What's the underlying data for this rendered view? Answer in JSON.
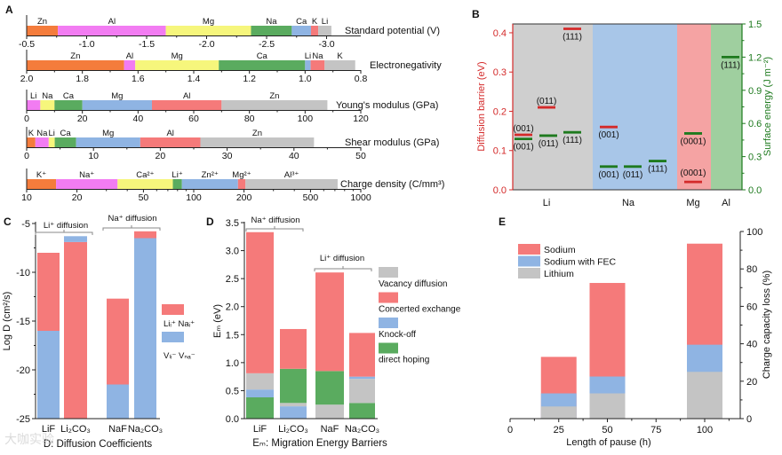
{
  "panel_labels": [
    "A",
    "B",
    "C",
    "D",
    "E"
  ],
  "watermark": "大咖实验",
  "colors": {
    "orange": "#f47c3c",
    "magenta": "#f27cf2",
    "yellow": "#f6f67c",
    "green": "#5aab5f",
    "blue": "#8fb4e3",
    "red": "#f57a7a",
    "gray": "#c4c4c4",
    "barrier": "#d42a2a",
    "surface": "#1e7a1e"
  },
  "chart_data": [
    {
      "panel": "A",
      "type": "bar",
      "subtype": "cumulative horizontal segment bars",
      "rows": [
        {
          "title": "Standard potential (V)",
          "scale": "linear",
          "domain": [
            -0.5,
            -3.285
          ],
          "ticks": [
            -0.5,
            -1.0,
            -1.5,
            -2.0,
            -2.5,
            -3.0
          ],
          "tick_labels": [
            "-0.5",
            "-1.0",
            "-1.5",
            "-2.0",
            "-2.5",
            "-3.0"
          ],
          "segments": [
            {
              "label": "Zn",
              "value": -0.76,
              "color": "orange"
            },
            {
              "label": "Al",
              "value": -1.66,
              "color": "magenta"
            },
            {
              "label": "Mg",
              "value": -2.37,
              "color": "yellow"
            },
            {
              "label": "Na",
              "value": -2.71,
              "color": "green"
            },
            {
              "label": "Ca",
              "value": -2.87,
              "color": "blue"
            },
            {
              "label": "K",
              "value": -2.93,
              "color": "red"
            },
            {
              "label": "Li",
              "value": -3.04,
              "color": "gray"
            }
          ]
        },
        {
          "title": "Electronegativity",
          "scale": "linear",
          "domain": [
            2.0,
            0.8
          ],
          "ticks": [
            2.0,
            1.8,
            1.6,
            1.4,
            1.2,
            1.0,
            0.8
          ],
          "tick_labels": [
            "2.0",
            "1.8",
            "1.6",
            "1.4",
            "1.2",
            "1.0",
            "0.8"
          ],
          "segments": [
            {
              "label": "Zn",
              "value": 1.65,
              "color": "orange"
            },
            {
              "label": "Al",
              "value": 1.61,
              "color": "magenta"
            },
            {
              "label": "Mg",
              "value": 1.31,
              "color": "yellow"
            },
            {
              "label": "Ca",
              "value": 1.0,
              "color": "green"
            },
            {
              "label": "Li",
              "value": 0.98,
              "color": "blue"
            },
            {
              "label": "Na",
              "value": 0.93,
              "color": "red"
            },
            {
              "label": "K",
              "value": 0.82,
              "color": "gray"
            }
          ]
        },
        {
          "title": "Young's modulus (GPa)",
          "scale": "linear",
          "domain": [
            0,
            120
          ],
          "ticks": [
            0,
            20,
            40,
            60,
            80,
            100,
            120
          ],
          "tick_labels": [
            "0",
            "20",
            "40",
            "60",
            "80",
            "100",
            "120"
          ],
          "segments": [
            {
              "label": "Li",
              "value": 4.9,
              "color": "magenta"
            },
            {
              "label": "Na",
              "value": 10,
              "color": "yellow"
            },
            {
              "label": "Ca",
              "value": 20,
              "color": "green"
            },
            {
              "label": "Mg",
              "value": 45,
              "color": "blue"
            },
            {
              "label": "Al",
              "value": 70,
              "color": "red"
            },
            {
              "label": "Zn",
              "value": 108,
              "color": "gray"
            }
          ]
        },
        {
          "title": "Shear modulus (GPa)",
          "scale": "linear",
          "domain": [
            0,
            50
          ],
          "ticks": [
            0,
            10,
            20,
            30,
            40,
            50
          ],
          "tick_labels": [
            "0",
            "10",
            "20",
            "30",
            "40",
            "50"
          ],
          "segments": [
            {
              "label": "K",
              "value": 1.3,
              "color": "orange"
            },
            {
              "label": "Na",
              "value": 3.3,
              "color": "magenta"
            },
            {
              "label": "Li",
              "value": 4.2,
              "color": "yellow"
            },
            {
              "label": "Ca",
              "value": 7.4,
              "color": "green"
            },
            {
              "label": "Mg",
              "value": 17,
              "color": "blue"
            },
            {
              "label": "Al",
              "value": 26,
              "color": "red"
            },
            {
              "label": "Zn",
              "value": 43,
              "color": "gray"
            }
          ]
        },
        {
          "title": "Charge density (C/mm³)",
          "scale": "log",
          "domain": [
            10,
            1000
          ],
          "ticks": [
            10,
            20,
            50,
            100,
            200,
            500,
            1000
          ],
          "tick_labels": [
            "10",
            "20",
            "50",
            "100",
            "200",
            "500",
            "1000"
          ],
          "segments": [
            {
              "label": "K⁺",
              "value": 15,
              "color": "orange"
            },
            {
              "label": "Na⁺",
              "value": 35,
              "color": "magenta"
            },
            {
              "label": "Ca²⁺",
              "value": 75,
              "color": "yellow"
            },
            {
              "label": "Li⁺",
              "value": 85,
              "color": "green"
            },
            {
              "label": "Zn²⁺",
              "value": 184,
              "color": "blue"
            },
            {
              "label": "Mg²⁺",
              "value": 204,
              "color": "red"
            },
            {
              "label": "Al³⁺",
              "value": 727,
              "color": "gray"
            }
          ]
        }
      ]
    },
    {
      "panel": "B",
      "type": "scatter",
      "ylabel": "Diffusion barrier (eV)",
      "ylim": [
        0,
        0.4225
      ],
      "yticks": [
        "0.0",
        "0.1",
        "0.2",
        "0.3",
        "0.4"
      ],
      "y2label": "Surface energy (J m⁻²)",
      "y2lim": [
        0,
        1.5
      ],
      "y2ticks": [
        "0.0",
        "0.3",
        "0.6",
        "0.9",
        "1.2",
        "1.5"
      ],
      "categories": [
        {
          "label": "Li",
          "color": "#cfcfcf"
        },
        {
          "label": "Na",
          "color": "#a8c6e8"
        },
        {
          "label": "Mg",
          "color": "#f5a3a3"
        },
        {
          "label": "Al",
          "color": "#9fcf9f"
        }
      ],
      "points": [
        {
          "metal": "Li",
          "facet": "(001)",
          "metric": "barrier",
          "value": 0.14
        },
        {
          "metal": "Li",
          "facet": "(001)",
          "metric": "surface",
          "value": 0.46
        },
        {
          "metal": "Li",
          "facet": "(011)",
          "metric": "barrier",
          "value": 0.21
        },
        {
          "metal": "Li",
          "facet": "(011)",
          "metric": "surface",
          "value": 0.49
        },
        {
          "metal": "Li",
          "facet": "(111)",
          "metric": "barrier",
          "value": 0.41
        },
        {
          "metal": "Li",
          "facet": "(111)",
          "metric": "surface",
          "value": 0.52
        },
        {
          "metal": "Na",
          "facet": "(001)",
          "metric": "barrier",
          "value": 0.16
        },
        {
          "metal": "Na",
          "facet": "(001)",
          "metric": "surface",
          "value": 0.21
        },
        {
          "metal": "Na",
          "facet": "(011)",
          "metric": "surface",
          "value": 0.21
        },
        {
          "metal": "Na",
          "facet": "(111)",
          "metric": "surface",
          "value": 0.26
        },
        {
          "metal": "Mg",
          "facet": "(0001)",
          "metric": "barrier",
          "value": 0.02
        },
        {
          "metal": "Mg",
          "facet": "(0001)",
          "metric": "surface",
          "value": 0.51
        },
        {
          "metal": "Al",
          "facet": "(111)",
          "metric": "surface",
          "value": 1.2
        }
      ]
    },
    {
      "panel": "C",
      "type": "bar",
      "title": "D: Diffusion Coefficients",
      "ylabel": "Log D (cm²/s)",
      "ylim": [
        -25,
        -5
      ],
      "yticks": [
        -5,
        -10,
        -15,
        -20,
        -25
      ],
      "ytick_labels": [
        "-5",
        "-10",
        "-15",
        "-20",
        "-25"
      ],
      "categories": [
        "LiF",
        "Li₂CO₃",
        "NaF",
        "Na₂CO₃"
      ],
      "groups": [
        {
          "label": "Li⁺ diffusion"
        },
        {
          "label": "Na⁺ diffusion"
        }
      ],
      "legend": [
        {
          "label": "Liᵢ⁺  Naᵢ⁺",
          "color": "red"
        },
        {
          "label": "Vₗᵢ⁻  Vₙₐ⁻",
          "color": "blue"
        }
      ],
      "stacks": [
        [
          {
            "series": "vacancy",
            "color": "blue",
            "top": -16.0
          },
          {
            "series": "interstitial",
            "color": "red",
            "top": -8.0
          }
        ],
        [
          {
            "series": "interstitial",
            "color": "red",
            "top": -6.9
          },
          {
            "series": "vacancy",
            "color": "blue",
            "top": -6.3
          }
        ],
        [
          {
            "series": "vacancy",
            "color": "blue",
            "top": -21.5
          },
          {
            "series": "interstitial",
            "color": "red",
            "top": -12.7
          }
        ],
        [
          {
            "series": "vacancy",
            "color": "blue",
            "top": -6.5
          },
          {
            "series": "interstitial",
            "color": "red",
            "top": -5.8
          }
        ]
      ]
    },
    {
      "panel": "D",
      "type": "bar",
      "title": "Eₘ: Migration Energy Barriers",
      "ylabel": "Eₘ (eV)",
      "ylim": [
        0,
        3.5
      ],
      "yticks": [
        0,
        0.5,
        1.0,
        1.5,
        2.0,
        2.5,
        3.0,
        3.5
      ],
      "ytick_labels": [
        "0.0",
        "0.5",
        "1.0",
        "1.5",
        "2.0",
        "2.5",
        "3.0",
        "3.5"
      ],
      "categories": [
        "LiF",
        "Li₂CO₃",
        "NaF",
        "Na₂CO₃"
      ],
      "groups": [
        {
          "label": "Na⁺ diffusion"
        },
        {
          "label": "Li⁺ diffusion"
        }
      ],
      "legend": [
        {
          "label": "Vacancy diffusion",
          "color": "gray"
        },
        {
          "label": "Concerted exchange",
          "color": "red"
        },
        {
          "label": "Knock-off",
          "color": "blue"
        },
        {
          "label": "direct hoping",
          "color": "green"
        }
      ],
      "stacks": [
        [
          {
            "series": "direct hoping",
            "color": "green",
            "top": 0.38
          },
          {
            "series": "Knock-off",
            "color": "blue",
            "top": 0.52
          },
          {
            "series": "Vacancy diffusion",
            "color": "gray",
            "top": 0.81
          },
          {
            "series": "Concerted exchange",
            "color": "red",
            "top": 3.33
          }
        ],
        [
          {
            "series": "Knock-off",
            "color": "blue",
            "top": 0.22
          },
          {
            "series": "Vacancy diffusion",
            "color": "gray",
            "top": 0.28
          },
          {
            "series": "direct hoping",
            "color": "green",
            "top": 0.89
          },
          {
            "series": "Concerted exchange",
            "color": "red",
            "top": 1.6
          }
        ],
        [
          {
            "series": "Vacancy diffusion",
            "color": "gray",
            "top": 0.25
          },
          {
            "series": "direct hoping",
            "color": "green",
            "top": 0.85
          },
          {
            "series": "Concerted exchange",
            "color": "red",
            "top": 2.61
          }
        ],
        [
          {
            "series": "direct hoping",
            "color": "green",
            "top": 0.28
          },
          {
            "series": "Vacancy diffusion",
            "color": "gray",
            "top": 0.71
          },
          {
            "series": "Knock-off",
            "color": "blue",
            "top": 0.75
          },
          {
            "series": "Concerted exchange",
            "color": "red",
            "top": 1.53
          }
        ]
      ]
    },
    {
      "panel": "E",
      "type": "bar",
      "xlabel": "Length of pause (h)",
      "xlim": [
        0,
        110
      ],
      "xticks": [
        0,
        25,
        50,
        75,
        100
      ],
      "xtick_labels": [
        "0",
        "25",
        "50",
        "75",
        "100"
      ],
      "ylabel": "Charge capacity loss (%)",
      "ylim": [
        0,
        100
      ],
      "yticks": [
        0,
        20,
        40,
        60,
        80,
        100
      ],
      "ytick_labels": [
        "0",
        "20",
        "40",
        "60",
        "80",
        "100"
      ],
      "x": [
        25,
        50,
        100
      ],
      "series": [
        {
          "name": "Sodium",
          "color": "red",
          "values": [
            33,
            72.5,
            93.5
          ]
        },
        {
          "name": "Sodium with FEC",
          "color": "blue",
          "values": [
            13.5,
            22.5,
            39.5
          ]
        },
        {
          "name": "Lithium",
          "color": "gray",
          "values": [
            6.5,
            13.5,
            25
          ]
        }
      ]
    }
  ]
}
